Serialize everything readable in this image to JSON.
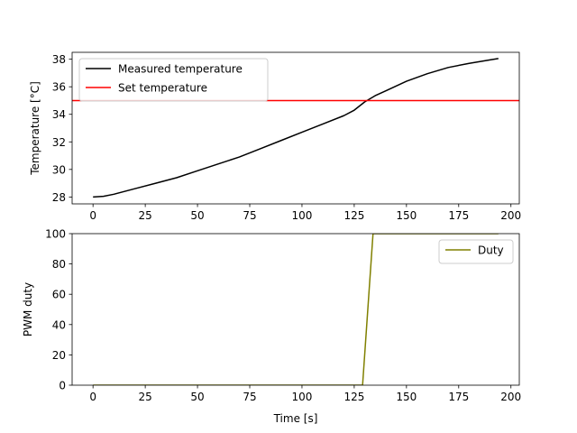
{
  "chart_data": [
    {
      "type": "line",
      "xlabel": "",
      "ylabel": "Temperature [°C]",
      "xlim": [
        -10,
        204
      ],
      "ylim": [
        27.5,
        38.5
      ],
      "xticks": [
        0,
        25,
        50,
        75,
        100,
        125,
        150,
        175,
        200
      ],
      "xtick_labels": [
        "0",
        "25",
        "50",
        "75",
        "100",
        "125",
        "150",
        "175",
        "200"
      ],
      "yticks": [
        28,
        30,
        32,
        34,
        36,
        38
      ],
      "ytick_labels": [
        "28",
        "30",
        "32",
        "34",
        "36",
        "38"
      ],
      "legend_position": "top-left",
      "grid": false,
      "series": [
        {
          "name": "Measured temperature",
          "color": "#000000",
          "x": [
            0,
            5,
            10,
            20,
            30,
            40,
            50,
            60,
            70,
            80,
            90,
            100,
            110,
            120,
            125,
            130,
            135,
            140,
            150,
            160,
            170,
            180,
            190,
            194
          ],
          "y": [
            28.0,
            28.05,
            28.2,
            28.6,
            29.0,
            29.4,
            29.9,
            30.4,
            30.9,
            31.5,
            32.1,
            32.7,
            33.3,
            33.9,
            34.3,
            34.9,
            35.35,
            35.7,
            36.4,
            36.95,
            37.4,
            37.7,
            37.95,
            38.05
          ]
        },
        {
          "name": "Set temperature",
          "color": "#ff0000",
          "x": [
            -10,
            204
          ],
          "y": [
            35,
            35
          ]
        }
      ]
    },
    {
      "type": "line",
      "xlabel": "Time [s]",
      "ylabel": "PWM duty",
      "xlim": [
        -10,
        204
      ],
      "ylim": [
        0,
        100
      ],
      "xticks": [
        0,
        25,
        50,
        75,
        100,
        125,
        150,
        175,
        200
      ],
      "xtick_labels": [
        "0",
        "25",
        "50",
        "75",
        "100",
        "125",
        "150",
        "175",
        "200"
      ],
      "yticks": [
        0,
        20,
        40,
        60,
        80,
        100
      ],
      "ytick_labels": [
        "0",
        "20",
        "40",
        "60",
        "80",
        "100"
      ],
      "legend_position": "top-right",
      "grid": false,
      "series": [
        {
          "name": "Duty",
          "color": "#808000",
          "x": [
            0,
            129,
            134,
            194
          ],
          "y": [
            0,
            0,
            100,
            100
          ]
        }
      ]
    }
  ]
}
